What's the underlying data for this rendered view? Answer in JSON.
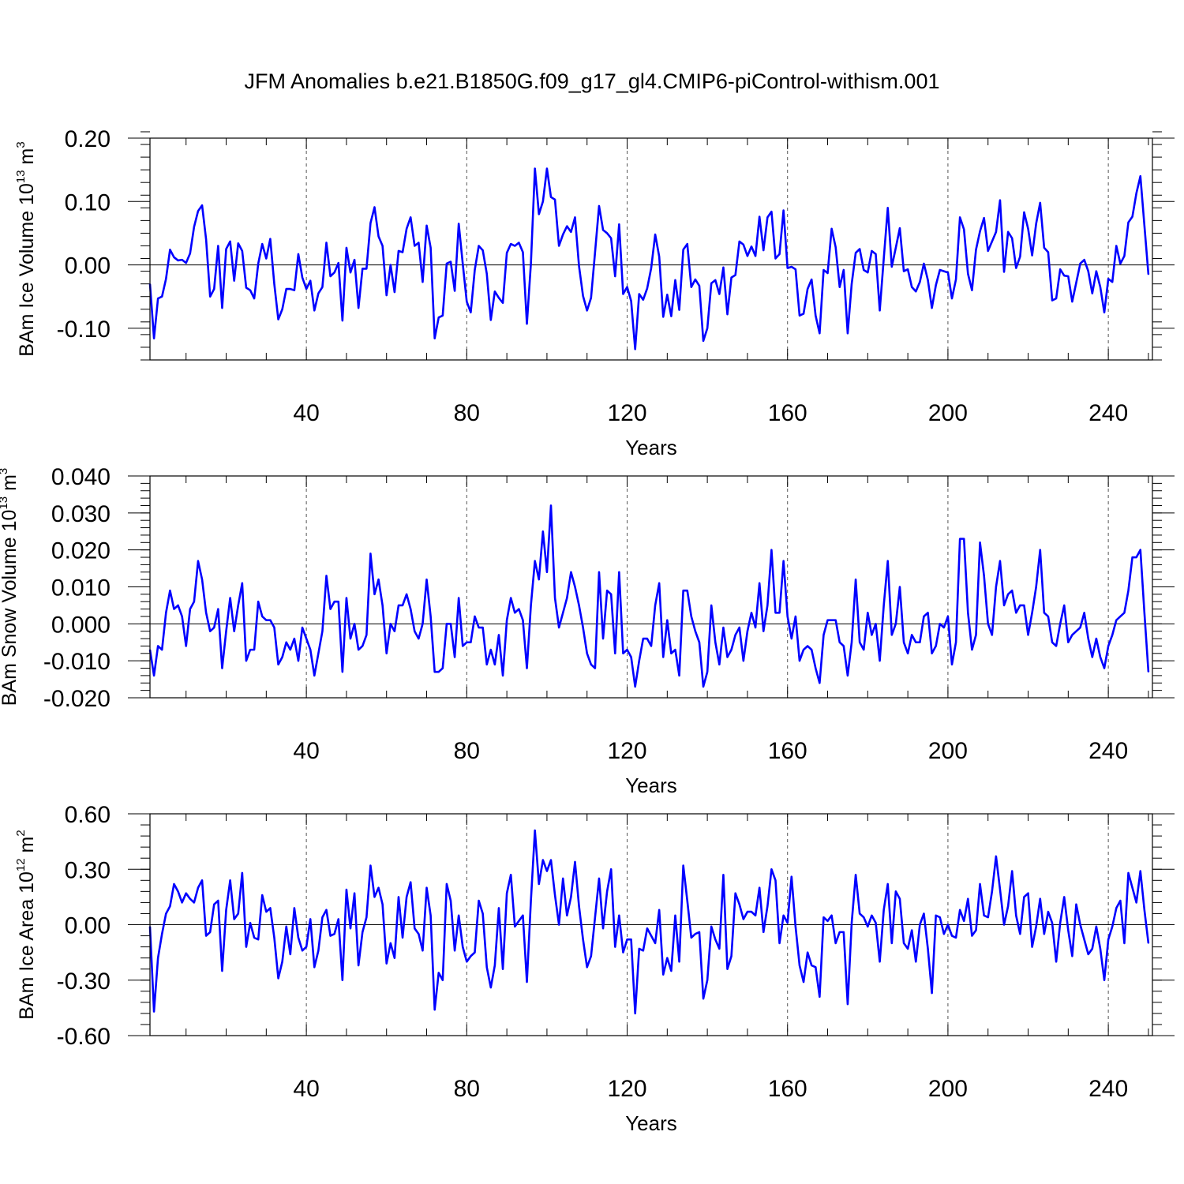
{
  "title": "JFM Anomalies b.e21.B1850G.f09_g17_gl4.CMIP6-piControl-withism.001",
  "colors": {
    "line": "#0000ff",
    "axis": "#000000",
    "grid": "#555555"
  },
  "chart_data": [
    {
      "type": "line",
      "xlabel": "Years",
      "ylabel_parts": {
        "prefix": "BAm Ice Volume 10",
        "exp": "13",
        "unit": " m",
        "unit_exp": "3"
      },
      "xlim": [
        1,
        251
      ],
      "ylim": [
        -0.15,
        0.2
      ],
      "x_ticks": [
        40,
        80,
        120,
        160,
        200,
        240
      ],
      "x_tick_labels": [
        "40",
        "80",
        "120",
        "160",
        "200",
        "240"
      ],
      "y_ticks": [
        -0.1,
        0.0,
        0.1,
        0.2
      ],
      "y_tick_labels": [
        "-0.10",
        "0.00",
        "0.10",
        "0.20"
      ],
      "y_minor_step": 0.02,
      "series": [
        {
          "name": "BAm Ice Volume",
          "x_start": 1,
          "values": [
            -0.03,
            -0.116,
            -0.053,
            -0.05,
            -0.022,
            0.024,
            0.012,
            0.007,
            0.008,
            0.003,
            0.018,
            0.06,
            0.085,
            0.094,
            0.04,
            -0.05,
            -0.038,
            0.03,
            -0.068,
            0.025,
            0.037,
            -0.025,
            0.034,
            0.022,
            -0.036,
            -0.04,
            -0.053,
            0.002,
            0.033,
            0.01,
            0.041,
            -0.03,
            -0.086,
            -0.07,
            -0.038,
            -0.038,
            -0.04,
            0.017,
            -0.02,
            -0.038,
            -0.025,
            -0.072,
            -0.045,
            -0.035,
            0.035,
            -0.018,
            -0.012,
            0.003,
            -0.088,
            0.027,
            -0.012,
            0.008,
            -0.068,
            -0.006,
            -0.006,
            0.066,
            0.091,
            0.045,
            0.03,
            -0.048,
            0.0,
            -0.043,
            0.022,
            0.02,
            0.057,
            0.075,
            0.03,
            0.035,
            -0.027,
            0.062,
            0.027,
            -0.116,
            -0.083,
            -0.08,
            0.002,
            0.005,
            -0.041,
            0.065,
            0.002,
            -0.058,
            -0.075,
            -0.008,
            0.03,
            0.023,
            -0.014,
            -0.087,
            -0.042,
            -0.052,
            -0.06,
            0.019,
            0.033,
            0.03,
            0.035,
            0.02,
            -0.093,
            0.002,
            0.152,
            0.08,
            0.1,
            0.152,
            0.107,
            0.103,
            0.03,
            0.048,
            0.061,
            0.052,
            0.075,
            -0.002,
            -0.049,
            -0.072,
            -0.052,
            0.02,
            0.093,
            0.055,
            0.05,
            0.042,
            -0.018,
            0.064,
            -0.046,
            -0.035,
            -0.057,
            -0.133,
            -0.046,
            -0.055,
            -0.037,
            -0.005,
            0.048,
            0.013,
            -0.082,
            -0.047,
            -0.081,
            -0.024,
            -0.071,
            0.024,
            0.033,
            -0.035,
            -0.023,
            -0.033,
            -0.12,
            -0.1,
            -0.029,
            -0.024,
            -0.046,
            -0.004,
            -0.078,
            -0.02,
            -0.016,
            0.037,
            0.032,
            0.014,
            0.029,
            0.014,
            0.076,
            0.023,
            0.075,
            0.084,
            0.01,
            0.017,
            0.086,
            -0.005,
            -0.003,
            -0.007,
            -0.08,
            -0.077,
            -0.038,
            -0.023,
            -0.08,
            -0.108,
            -0.008,
            -0.013,
            0.057,
            0.028,
            -0.035,
            -0.008,
            -0.108,
            -0.03,
            0.019,
            0.025,
            -0.008,
            -0.012,
            0.022,
            0.017,
            -0.072,
            0.01,
            0.09,
            -0.003,
            0.027,
            0.058,
            -0.01,
            -0.007,
            -0.035,
            -0.042,
            -0.027,
            0.002,
            -0.024,
            -0.068,
            -0.032,
            -0.008,
            -0.01,
            -0.012,
            -0.053,
            -0.023,
            0.075,
            0.056,
            -0.014,
            -0.04,
            0.024,
            0.053,
            0.074,
            0.022,
            0.037,
            0.052,
            0.102,
            -0.011,
            0.052,
            0.042,
            -0.005,
            0.013,
            0.083,
            0.057,
            0.015,
            0.065,
            0.098,
            0.027,
            0.02,
            -0.056,
            -0.053,
            -0.007,
            -0.017,
            -0.018,
            -0.058,
            -0.028,
            0.002,
            0.008,
            -0.01,
            -0.045,
            -0.01,
            -0.035,
            -0.075,
            -0.022,
            -0.027,
            0.03,
            0.002,
            0.014,
            0.067,
            0.076,
            0.113,
            0.14,
            0.062,
            -0.015
          ]
        }
      ]
    },
    {
      "type": "line",
      "xlabel": "Years",
      "ylabel_parts": {
        "prefix": "BAm Snow Volume 10",
        "exp": "13",
        "unit": " m",
        "unit_exp": "3"
      },
      "xlim": [
        1,
        251
      ],
      "ylim": [
        -0.02,
        0.04
      ],
      "x_ticks": [
        40,
        80,
        120,
        160,
        200,
        240
      ],
      "x_tick_labels": [
        "40",
        "80",
        "120",
        "160",
        "200",
        "240"
      ],
      "y_ticks": [
        -0.02,
        -0.01,
        0.0,
        0.01,
        0.02,
        0.03,
        0.04
      ],
      "y_tick_labels": [
        "-0.020",
        "-0.010",
        "0.000",
        "0.010",
        "0.020",
        "0.030",
        "0.040"
      ],
      "y_minor_step": 0.002,
      "series": [
        {
          "name": "BAm Snow Volume",
          "x_start": 1,
          "values": [
            -0.007,
            -0.014,
            -0.006,
            -0.007,
            0.003,
            0.009,
            0.004,
            0.005,
            0.002,
            -0.006,
            0.004,
            0.006,
            0.017,
            0.012,
            0.003,
            -0.002,
            -0.001,
            0.004,
            -0.012,
            -0.002,
            0.007,
            -0.002,
            0.005,
            0.011,
            -0.01,
            -0.007,
            -0.007,
            0.006,
            0.002,
            0.001,
            0.001,
            -0.001,
            -0.011,
            -0.009,
            -0.005,
            -0.007,
            -0.004,
            -0.01,
            -0.001,
            -0.004,
            -0.007,
            -0.014,
            -0.008,
            -0.002,
            0.013,
            0.004,
            0.006,
            0.006,
            -0.013,
            0.007,
            -0.004,
            0.0,
            -0.007,
            -0.006,
            -0.003,
            0.019,
            0.008,
            0.012,
            0.005,
            -0.008,
            0.0,
            -0.002,
            0.005,
            0.005,
            0.008,
            0.004,
            -0.002,
            -0.004,
            0.0,
            0.012,
            0.002,
            -0.013,
            -0.013,
            -0.012,
            0.0,
            0.0,
            -0.009,
            0.007,
            -0.006,
            -0.005,
            -0.005,
            0.002,
            -0.001,
            -0.001,
            -0.011,
            -0.007,
            -0.011,
            -0.003,
            -0.014,
            0.001,
            0.007,
            0.003,
            0.004,
            0.001,
            -0.012,
            0.005,
            0.017,
            0.012,
            0.025,
            0.014,
            0.032,
            0.007,
            -0.001,
            0.003,
            0.007,
            0.014,
            0.01,
            0.005,
            -0.001,
            -0.008,
            -0.011,
            -0.012,
            0.014,
            -0.004,
            0.009,
            0.008,
            -0.008,
            0.014,
            -0.008,
            -0.007,
            -0.009,
            -0.017,
            -0.01,
            -0.004,
            -0.004,
            -0.006,
            0.005,
            0.011,
            -0.009,
            0.001,
            -0.008,
            -0.007,
            -0.014,
            0.009,
            0.009,
            0.002,
            -0.002,
            -0.005,
            -0.017,
            -0.013,
            0.005,
            -0.005,
            -0.011,
            -0.001,
            -0.009,
            -0.007,
            -0.003,
            -0.001,
            -0.01,
            -0.002,
            0.003,
            -0.001,
            0.011,
            -0.002,
            0.005,
            0.02,
            0.003,
            0.003,
            0.017,
            0.002,
            -0.004,
            0.002,
            -0.01,
            -0.007,
            -0.006,
            -0.007,
            -0.012,
            -0.016,
            -0.003,
            0.001,
            0.001,
            0.001,
            -0.005,
            -0.006,
            -0.014,
            -0.005,
            0.012,
            -0.005,
            -0.007,
            0.003,
            -0.003,
            0.0,
            -0.01,
            0.005,
            0.017,
            -0.003,
            0.0,
            0.01,
            -0.005,
            -0.008,
            -0.003,
            -0.005,
            -0.005,
            0.002,
            0.003,
            -0.008,
            -0.006,
            0.0,
            -0.001,
            0.002,
            -0.011,
            -0.005,
            0.023,
            0.023,
            0.003,
            -0.007,
            -0.003,
            0.022,
            0.013,
            0.0,
            -0.003,
            0.01,
            0.017,
            0.005,
            0.008,
            0.009,
            0.003,
            0.005,
            0.005,
            -0.003,
            0.003,
            0.01,
            0.02,
            0.003,
            0.002,
            -0.005,
            -0.006,
            0.0,
            0.005,
            -0.005,
            -0.003,
            -0.002,
            -0.001,
            0.003,
            -0.004,
            -0.009,
            -0.004,
            -0.009,
            -0.012,
            -0.006,
            -0.003,
            0.001,
            0.002,
            0.003,
            0.009,
            0.018,
            0.018,
            0.02,
            0.003,
            -0.013
          ]
        }
      ]
    },
    {
      "type": "line",
      "xlabel": "Years",
      "ylabel_parts": {
        "prefix": "BAm Ice Area 10",
        "exp": "12",
        "unit": " m",
        "unit_exp": "2"
      },
      "xlim": [
        1,
        251
      ],
      "ylim": [
        -0.6,
        0.6
      ],
      "x_ticks": [
        40,
        80,
        120,
        160,
        200,
        240
      ],
      "x_tick_labels": [
        "40",
        "80",
        "120",
        "160",
        "200",
        "240"
      ],
      "y_ticks": [
        -0.6,
        -0.3,
        0.0,
        0.3,
        0.6
      ],
      "y_tick_labels": [
        "-0.60",
        "-0.30",
        "0.00",
        "0.30",
        "0.60"
      ],
      "y_minor_step": 0.06,
      "series": [
        {
          "name": "BAm Ice Area",
          "x_start": 1,
          "values": [
            -0.01,
            -0.47,
            -0.18,
            -0.05,
            0.06,
            0.1,
            0.22,
            0.18,
            0.12,
            0.17,
            0.14,
            0.12,
            0.2,
            0.24,
            -0.06,
            -0.04,
            0.11,
            0.13,
            -0.25,
            0.08,
            0.24,
            0.03,
            0.06,
            0.28,
            -0.12,
            0.01,
            -0.07,
            -0.08,
            0.16,
            0.07,
            0.09,
            -0.07,
            -0.29,
            -0.2,
            -0.01,
            -0.16,
            0.09,
            -0.07,
            -0.14,
            -0.12,
            0.03,
            -0.23,
            -0.14,
            0.04,
            0.08,
            -0.06,
            -0.05,
            0.03,
            -0.3,
            0.19,
            -0.02,
            0.17,
            -0.22,
            -0.04,
            0.04,
            0.32,
            0.15,
            0.2,
            0.11,
            -0.21,
            -0.1,
            -0.18,
            0.15,
            -0.07,
            0.15,
            0.23,
            -0.02,
            -0.05,
            -0.14,
            0.2,
            0.05,
            -0.46,
            -0.26,
            -0.3,
            0.22,
            0.13,
            -0.14,
            0.05,
            -0.12,
            -0.2,
            -0.17,
            -0.15,
            0.13,
            0.06,
            -0.23,
            -0.34,
            -0.22,
            0.09,
            -0.24,
            0.17,
            0.27,
            -0.01,
            0.02,
            0.05,
            -0.31,
            0.13,
            0.51,
            0.22,
            0.35,
            0.29,
            0.35,
            0.16,
            0.0,
            0.25,
            0.05,
            0.15,
            0.34,
            0.1,
            -0.08,
            -0.23,
            -0.17,
            0.04,
            0.25,
            -0.02,
            0.18,
            0.3,
            -0.12,
            0.05,
            -0.15,
            -0.08,
            -0.08,
            -0.48,
            -0.13,
            -0.14,
            -0.02,
            -0.06,
            -0.1,
            0.08,
            -0.27,
            -0.18,
            -0.25,
            0.05,
            -0.2,
            0.32,
            0.13,
            -0.07,
            -0.05,
            -0.04,
            -0.4,
            -0.3,
            -0.01,
            -0.08,
            -0.13,
            0.27,
            -0.24,
            -0.17,
            0.17,
            0.11,
            0.03,
            0.07,
            0.07,
            0.05,
            0.2,
            -0.04,
            0.1,
            0.3,
            0.24,
            -0.1,
            0.05,
            0.01,
            0.26,
            -0.01,
            -0.22,
            -0.31,
            -0.15,
            -0.22,
            -0.23,
            -0.39,
            0.04,
            0.02,
            0.05,
            -0.1,
            -0.04,
            -0.04,
            -0.43,
            0.01,
            0.27,
            0.06,
            0.04,
            -0.01,
            0.05,
            0.01,
            -0.2,
            0.08,
            0.22,
            -0.1,
            0.18,
            0.14,
            -0.1,
            -0.13,
            -0.03,
            -0.2,
            0.0,
            0.06,
            -0.13,
            -0.37,
            0.05,
            0.04,
            -0.05,
            0.0,
            -0.06,
            -0.07,
            0.08,
            0.02,
            0.14,
            -0.06,
            -0.03,
            0.22,
            0.05,
            0.04,
            0.18,
            0.37,
            0.19,
            0.0,
            0.1,
            0.29,
            0.05,
            -0.05,
            0.15,
            0.17,
            -0.12,
            -0.01,
            0.14,
            -0.05,
            0.07,
            0.01,
            -0.2,
            0.01,
            0.15,
            -0.03,
            -0.17,
            0.11,
            0.0,
            -0.08,
            -0.16,
            -0.13,
            -0.01,
            -0.13,
            -0.3,
            -0.08,
            -0.01,
            0.09,
            0.13,
            -0.1,
            0.28,
            0.2,
            0.12,
            0.29,
            0.08,
            -0.1
          ]
        }
      ]
    }
  ]
}
